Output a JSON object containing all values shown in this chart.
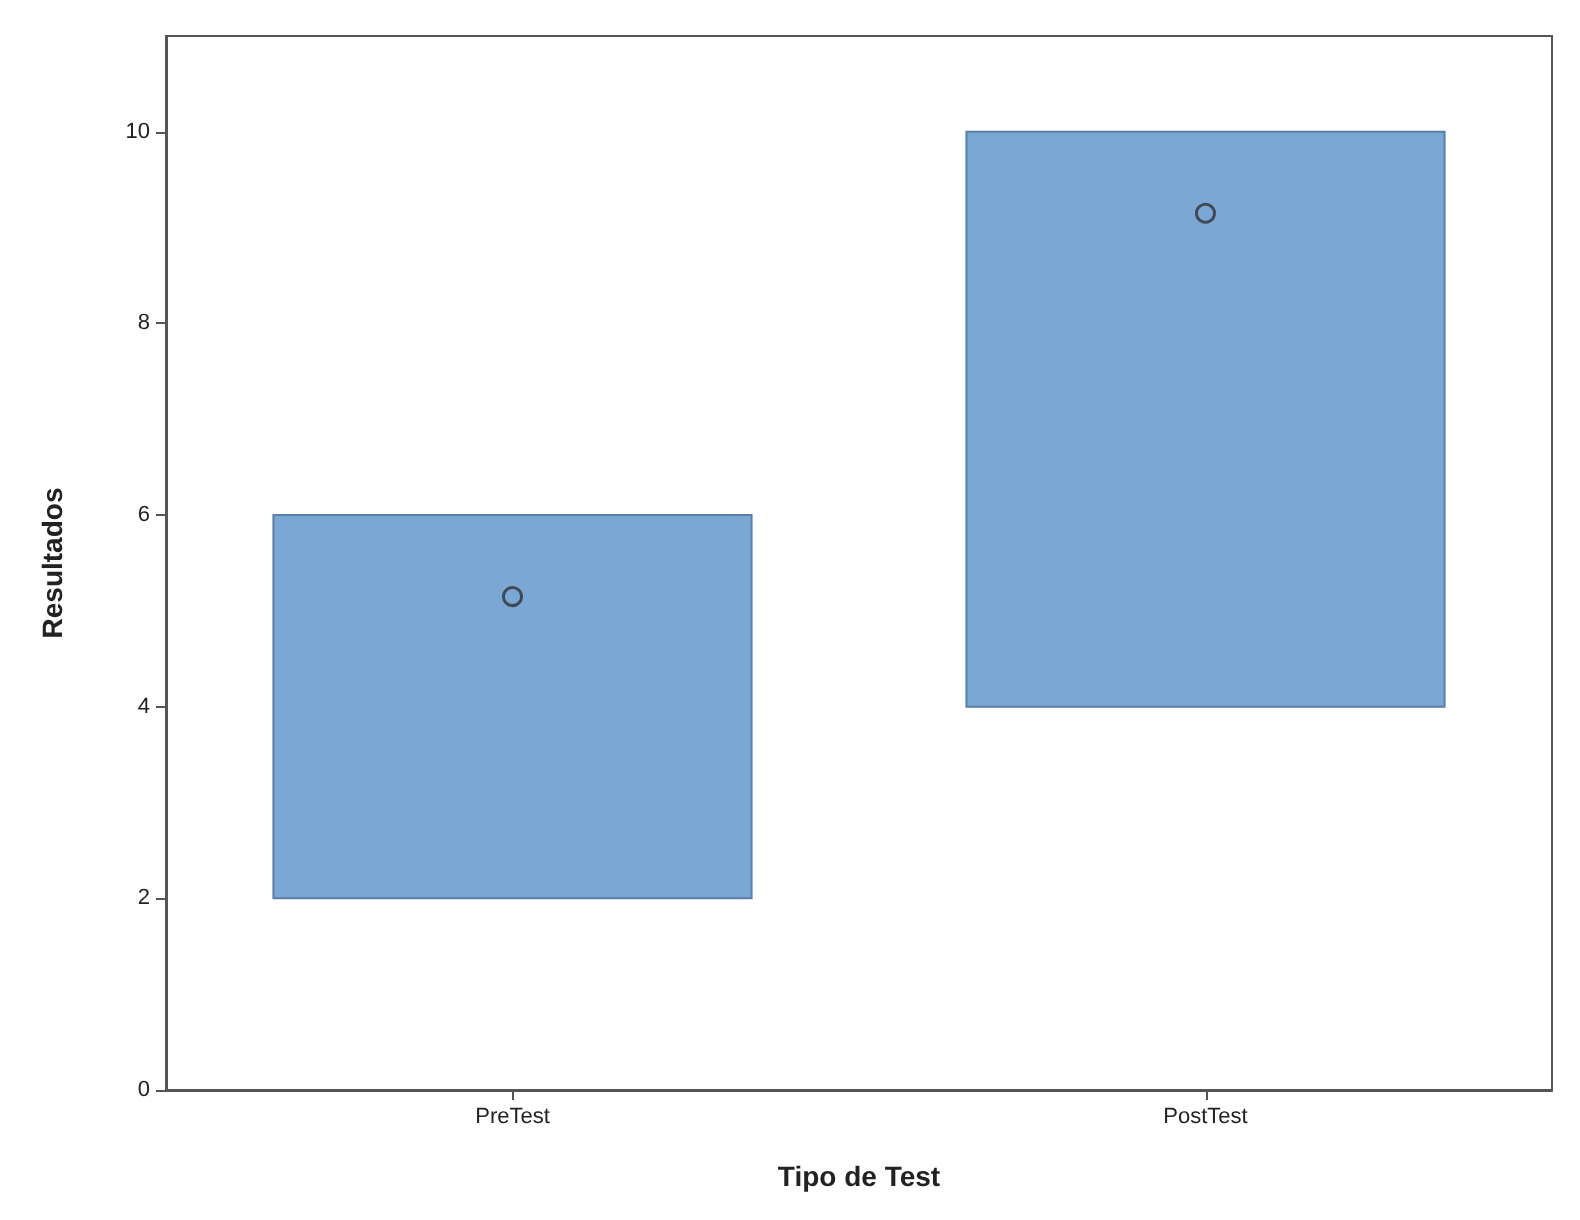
{
  "chart_data": {
    "type": "bar",
    "xlabel": "Tipo de Test",
    "ylabel": "Resultados",
    "categories": [
      "PreTest",
      "PostTest"
    ],
    "marker": "circle",
    "series": [
      {
        "color": "#7ba7d4",
        "values": [
          4,
          6
        ],
        "base": [
          2,
          4
        ]
      },
      {
        "type": "scatter",
        "x": [
          "PreTest",
          "PostTest"
        ],
        "color": "#333333",
        "values": [
          5.15,
          9.15
        ]
      }
    ],
    "ylim": [
      0,
      11
    ],
    "yticks": [
      0,
      2,
      4,
      6,
      8,
      10
    ],
    "grid": false
  }
}
